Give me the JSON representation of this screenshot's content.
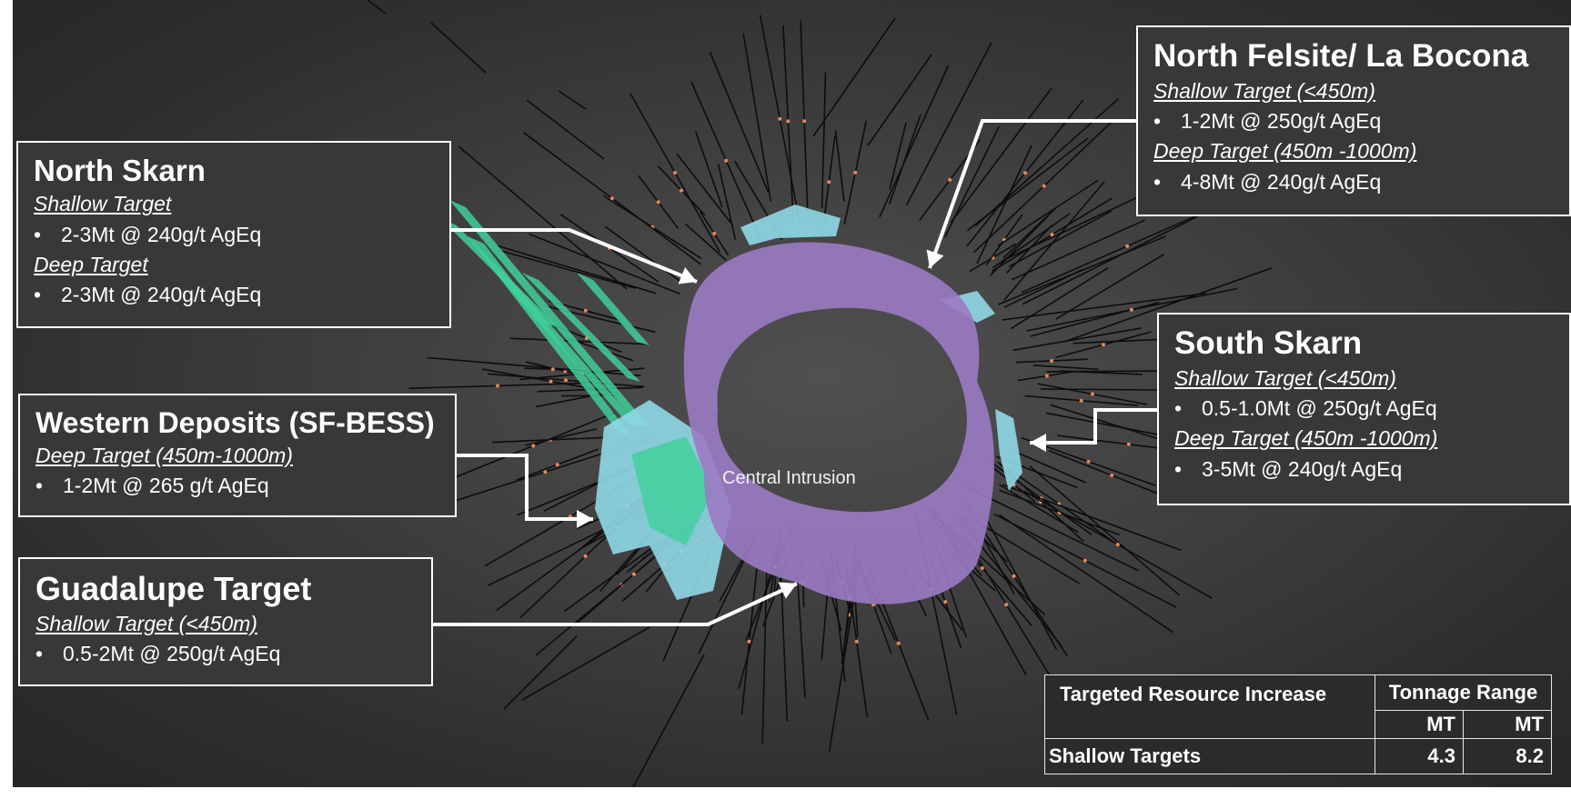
{
  "labels": {
    "central_intrusion": "Central Intrusion"
  },
  "callouts": {
    "north_felsite": {
      "title": "North Felsite/ La Bocona",
      "items": [
        {
          "heading": "Shallow Target (<450m)",
          "bullet": "1-2Mt @ 250g/t AgEq"
        },
        {
          "heading": "Deep Target (450m -1000m)",
          "bullet": "4-8Mt @ 240g/t AgEq"
        }
      ]
    },
    "north_skarn": {
      "title": "North Skarn",
      "items": [
        {
          "heading": "Shallow Target",
          "bullet": "2-3Mt @ 240g/t AgEq"
        },
        {
          "heading": "Deep Target",
          "bullet": "2-3Mt @ 240g/t AgEq"
        }
      ]
    },
    "western_deposits": {
      "title": "Western Deposits (SF-BESS)",
      "items": [
        {
          "heading": "Deep Target (450m-1000m)",
          "bullet": "1-2Mt @ 265 g/t AgEq"
        }
      ]
    },
    "guadalupe": {
      "title": "Guadalupe Target",
      "items": [
        {
          "heading": "Shallow Target (<450m)",
          "bullet": "0.5-2Mt @ 250g/t AgEq"
        }
      ]
    },
    "south_skarn": {
      "title": "South Skarn",
      "items": [
        {
          "heading": "Shallow Target (<450m)",
          "bullet": "0.5-1.0Mt @ 250g/t AgEq"
        },
        {
          "heading": "Deep Target (450m -1000m)",
          "bullet": "3-5Mt @ 240g/t AgEq"
        }
      ]
    }
  },
  "table": {
    "header_left": "Targeted Resource Increase",
    "header_right": "Tonnage Range",
    "unit_low": "MT",
    "unit_high": "MT",
    "rows": [
      {
        "label": "Shallow Targets",
        "low": "4.3",
        "high": "8.2"
      }
    ]
  },
  "colors": {
    "background": "#3a3a3a",
    "intrusion": "#9b7bc4",
    "skarn_green": "#3fcf9a",
    "skarn_cyan": "#8fd8e6",
    "drillhole": "#0d0d0d",
    "callout_border": "#ffffff",
    "arrow": "#ffffff"
  }
}
